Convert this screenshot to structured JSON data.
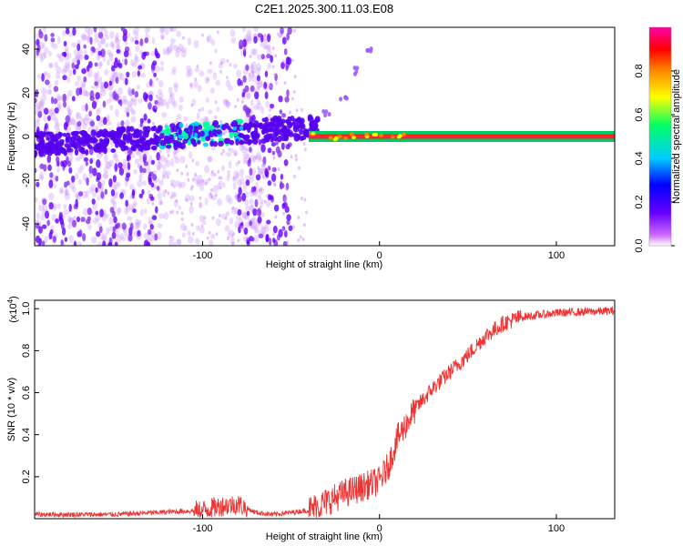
{
  "title": "C2E1.2025.300.11.03.E08",
  "chart_data": [
    {
      "type": "heatmap",
      "title": "C2E1.2025.300.11.03.E08",
      "xlabel": "Height of straight line (km)",
      "ylabel": "Frequency (Hz)",
      "xlim": [
        -195,
        133
      ],
      "ylim": [
        -50,
        50
      ],
      "xticks": [
        -100,
        0,
        100
      ],
      "yticks": [
        -40,
        -20,
        0,
        20,
        40
      ],
      "colorbar": {
        "label": "Normalized spectral amplitude",
        "range": [
          0,
          1
        ],
        "ticks": [
          "0.0",
          "0.2",
          "0.4",
          "0.6",
          "0.8"
        ],
        "colors": [
          "#ffffff",
          "#cc66ff",
          "#6600ff",
          "#0000ff",
          "#00ccff",
          "#00ff66",
          "#ffff00",
          "#ff8800",
          "#ff0000",
          "#ff00aa"
        ]
      },
      "features": {
        "signal_band_freq_hz": [
          -1,
          1
        ],
        "signal_band_x_range_km": [
          -40,
          133
        ],
        "chirp_points": [
          [
            -30,
            10
          ],
          [
            -20,
            18
          ],
          [
            -12,
            30
          ],
          [
            -6,
            40
          ]
        ]
      }
    },
    {
      "type": "line",
      "xlabel": "Height of straight line (km)",
      "ylabel": "SNR (10 * v/v)",
      "scale_label": "(x10",
      "scale_exp": "4",
      "xlim": [
        -195,
        133
      ],
      "ylim": [
        0,
        1.04
      ],
      "xticks": [
        -100,
        0,
        100
      ],
      "yticks": [
        0.2,
        0.4,
        0.6,
        0.8,
        1.0
      ],
      "series": [
        {
          "name": "SNR",
          "color": "#ee3333",
          "x": [
            -195,
            -150,
            -125,
            -100,
            -90,
            -80,
            -70,
            -60,
            -50,
            -40,
            -30,
            -20,
            -10,
            0,
            5,
            10,
            20,
            30,
            40,
            50,
            60,
            70,
            80,
            100,
            133
          ],
          "y": [
            0.02,
            0.02,
            0.03,
            0.04,
            0.06,
            0.07,
            0.03,
            0.02,
            0.03,
            0.04,
            0.08,
            0.12,
            0.15,
            0.18,
            0.25,
            0.38,
            0.52,
            0.62,
            0.7,
            0.78,
            0.87,
            0.93,
            0.96,
            0.98,
            0.99
          ]
        }
      ]
    }
  ]
}
